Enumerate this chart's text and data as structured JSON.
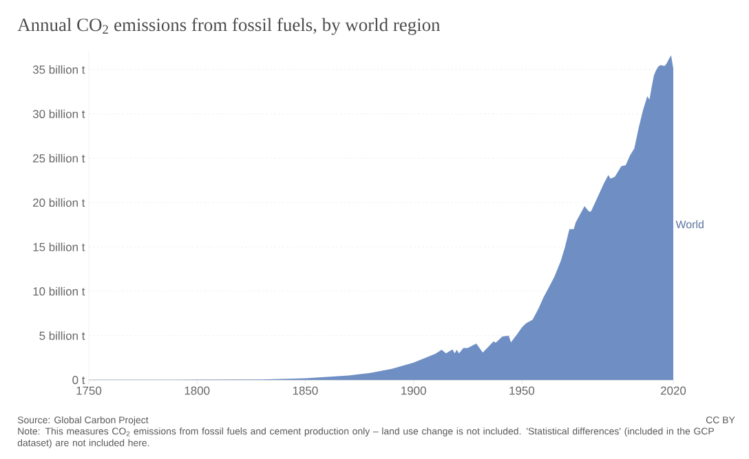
{
  "chart_data": {
    "type": "area",
    "title": "Annual CO$_{2}$ emissions from fossil fuels, by world region",
    "x": [
      1750,
      1800,
      1830,
      1850,
      1860,
      1870,
      1880,
      1890,
      1900,
      1910,
      1913,
      1915,
      1918,
      1919,
      1920,
      1921,
      1923,
      1925,
      1929,
      1932,
      1937,
      1938,
      1941,
      1944,
      1945,
      1948,
      1950,
      1952,
      1955,
      1957,
      1958,
      1960,
      1962,
      1965,
      1968,
      1970,
      1972,
      1974,
      1975,
      1979,
      1981,
      1982,
      1985,
      1988,
      1990,
      1991,
      1993,
      1996,
      1998,
      2000,
      2002,
      2004,
      2006,
      2008,
      2009,
      2010,
      2011,
      2012,
      2013,
      2014,
      2016,
      2017,
      2018,
      2019,
      2020
    ],
    "series": [
      {
        "name": "World",
        "color": "#6f8fc4",
        "values": [
          0.01,
          0.03,
          0.06,
          0.2,
          0.35,
          0.5,
          0.8,
          1.25,
          1.95,
          2.95,
          3.4,
          3.0,
          3.45,
          3.0,
          3.4,
          3.0,
          3.6,
          3.6,
          4.1,
          3.1,
          4.35,
          4.2,
          4.9,
          5.0,
          4.25,
          5.2,
          5.9,
          6.4,
          6.8,
          7.7,
          8.2,
          9.3,
          10.2,
          11.6,
          13.4,
          15.0,
          17.0,
          17.0,
          17.8,
          19.6,
          19.0,
          19.0,
          20.6,
          22.2,
          23.1,
          22.7,
          22.9,
          24.1,
          24.2,
          25.3,
          26.1,
          28.4,
          30.4,
          32.0,
          31.6,
          33.0,
          34.3,
          34.9,
          35.3,
          35.5,
          35.4,
          35.7,
          36.2,
          36.6,
          35.1
        ]
      }
    ],
    "xlim": [
      1750,
      2020
    ],
    "ylim": [
      0,
      37
    ],
    "xticks": [
      1750,
      1800,
      1850,
      1900,
      1950,
      2020
    ],
    "yticks": [
      {
        "value": 0,
        "label": "0 t"
      },
      {
        "value": 5,
        "label": "5 billion t"
      },
      {
        "value": 10,
        "label": "10 billion t"
      },
      {
        "value": 15,
        "label": "15 billion t"
      },
      {
        "value": 20,
        "label": "20 billion t"
      },
      {
        "value": 25,
        "label": "25 billion t"
      },
      {
        "value": 30,
        "label": "30 billion t"
      },
      {
        "value": 35,
        "label": "35 billion t"
      }
    ],
    "grid": "y",
    "annotations": [
      "Source: Global Carbon Project",
      "CC BY",
      "Note: This measures CO$_{2}$ emissions from fossil fuels and cement production only – land use change is not included. 'Statistical differences' (included in the GCP dataset) are not included here."
    ]
  }
}
